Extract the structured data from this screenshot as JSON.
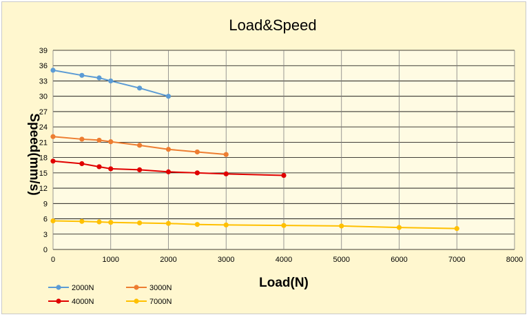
{
  "chart_data": {
    "type": "line",
    "title": "Load&Speed",
    "xlabel": "Load(N)",
    "ylabel": "Speed(mm/s)",
    "xlim": [
      0,
      8000
    ],
    "ylim": [
      0,
      39
    ],
    "x_ticks": [
      "0",
      "1000",
      "2000",
      "3000",
      "4000",
      "5000",
      "6000",
      "7000",
      "8000"
    ],
    "y_ticks": [
      "0",
      "3",
      "6",
      "9",
      "12",
      "15",
      "18",
      "21",
      "24",
      "27",
      "30",
      "33",
      "36",
      "39"
    ],
    "grid": true,
    "legend_position": "bottom-left",
    "series": [
      {
        "name": "2000N",
        "color": "#5b9bd5",
        "x": [
          0,
          500,
          800,
          1000,
          1500,
          2000
        ],
        "y": [
          35.1,
          34.1,
          33.6,
          33.0,
          31.6,
          30.0
        ]
      },
      {
        "name": "3000N",
        "color": "#ed7d31",
        "x": [
          0,
          500,
          800,
          1000,
          1500,
          2000,
          2500,
          3000
        ],
        "y": [
          22.1,
          21.6,
          21.4,
          21.1,
          20.4,
          19.6,
          19.1,
          18.6
        ]
      },
      {
        "name": "4000N",
        "color": "#e00000",
        "x": [
          0,
          500,
          800,
          1000,
          1500,
          2000,
          2500,
          3000,
          4000
        ],
        "y": [
          17.3,
          16.8,
          16.2,
          15.8,
          15.6,
          15.2,
          15.0,
          14.8,
          14.5
        ]
      },
      {
        "name": "7000N",
        "color": "#ffc000",
        "x": [
          0,
          500,
          800,
          1000,
          1500,
          2000,
          2500,
          3000,
          4000,
          5000,
          6000,
          7000
        ],
        "y": [
          5.6,
          5.5,
          5.4,
          5.3,
          5.2,
          5.1,
          4.9,
          4.8,
          4.7,
          4.6,
          4.3,
          4.1
        ]
      }
    ]
  }
}
